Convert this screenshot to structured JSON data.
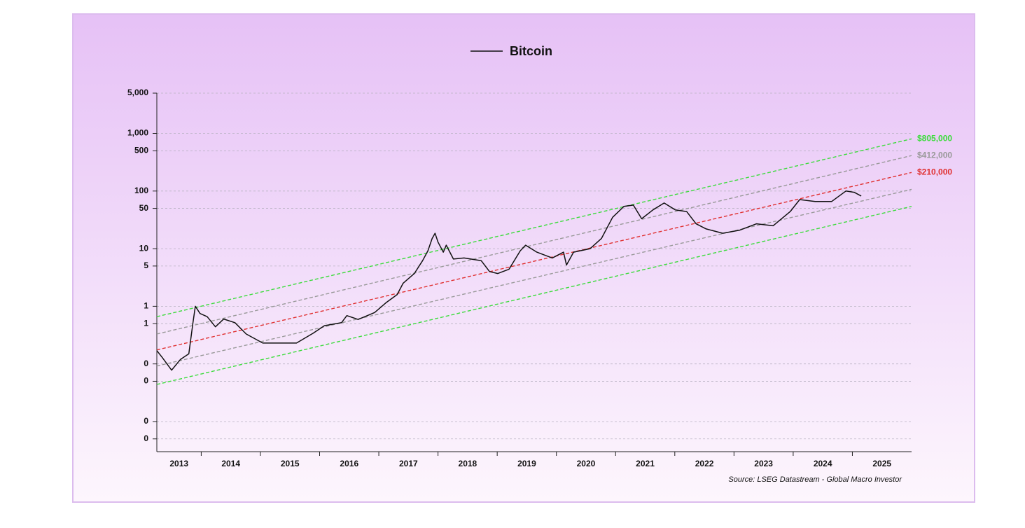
{
  "chart_data": {
    "type": "line",
    "yscale": "log",
    "grid": true,
    "legend": "top",
    "ylim": [
      0.003,
      5000
    ],
    "yticks": [
      {
        "value": 5000,
        "label": "5,000"
      },
      {
        "value": 1000,
        "label": "1,000"
      },
      500,
      100,
      50,
      10,
      5,
      1,
      {
        "value": 0.5,
        "label": "1"
      },
      {
        "value": 0.1,
        "label": "0"
      },
      {
        "value": 0.05,
        "label": "0"
      },
      {
        "value": 0.01,
        "label": "0"
      },
      {
        "value": 0.005,
        "label": "0"
      }
    ],
    "xlim": [
      2013.25,
      2026
    ],
    "xticks": [
      2013,
      2014,
      2015,
      2016,
      2017,
      2018,
      2019,
      2020,
      2021,
      2022,
      2023,
      2024,
      2025
    ],
    "series": [
      {
        "name": "Bitcoin",
        "color": "#111111",
        "x": [
          2013.25,
          2013.34,
          2013.5,
          2013.65,
          2013.79,
          2013.86,
          2013.9,
          2013.98,
          2014.1,
          2014.24,
          2014.38,
          2014.57,
          2014.76,
          2015.04,
          2015.33,
          2015.61,
          2015.89,
          2016.08,
          2016.37,
          2016.46,
          2016.65,
          2016.93,
          2017.12,
          2017.31,
          2017.41,
          2017.6,
          2017.74,
          2017.83,
          2017.9,
          2017.95,
          2018.0,
          2018.09,
          2018.14,
          2018.26,
          2018.44,
          2018.73,
          2018.87,
          2019.01,
          2019.2,
          2019.39,
          2019.48,
          2019.67,
          2019.93,
          2020.12,
          2020.17,
          2020.29,
          2020.57,
          2020.76,
          2020.95,
          2021.14,
          2021.3,
          2021.44,
          2021.63,
          2021.82,
          2022.01,
          2022.2,
          2022.36,
          2022.53,
          2022.81,
          2023.1,
          2023.38,
          2023.66,
          2023.95,
          2024.11,
          2024.37,
          2024.65,
          2024.89,
          2025.03,
          2025.15
        ],
        "values": [
          0.17,
          0.13,
          0.078,
          0.12,
          0.15,
          0.52,
          1.0,
          0.75,
          0.66,
          0.44,
          0.6,
          0.52,
          0.33,
          0.23,
          0.23,
          0.23,
          0.34,
          0.46,
          0.52,
          0.69,
          0.59,
          0.78,
          1.15,
          1.6,
          2.5,
          3.7,
          6.2,
          9.2,
          15,
          18.5,
          13,
          8.7,
          11.5,
          6.6,
          6.9,
          6.2,
          4.0,
          3.7,
          4.4,
          9.2,
          11.5,
          8.7,
          6.9,
          8.7,
          5.2,
          8.7,
          10,
          15,
          35,
          54,
          57,
          33,
          47,
          62,
          47,
          44,
          27,
          22,
          18.5,
          21,
          27,
          25,
          44,
          71,
          66,
          66,
          100,
          95,
          82
        ]
      }
    ],
    "bands": [
      {
        "color": "#3ddc3d",
        "x": [
          2013.25,
          2026
        ],
        "values": [
          0.66,
          805
        ],
        "value_labels": [
          null,
          "$805,000"
        ]
      },
      {
        "color": "#999999",
        "x": [
          2013.25,
          2026
        ],
        "values": [
          0.33,
          412
        ],
        "value_labels": [
          null,
          "$412,000"
        ]
      },
      {
        "color": "#e03030",
        "x": [
          2013.25,
          2026
        ],
        "values": [
          0.175,
          210
        ],
        "value_labels": [
          null,
          "$210,000"
        ]
      },
      {
        "color": "#999999",
        "x": [
          2013.25,
          2026
        ],
        "values": [
          0.092,
          107
        ]
      },
      {
        "color": "#3ddc3d",
        "x": [
          2013.25,
          2026
        ],
        "values": [
          0.044,
          54
        ]
      }
    ],
    "source": "Source: LSEG Datastream - Global Macro Investor"
  }
}
